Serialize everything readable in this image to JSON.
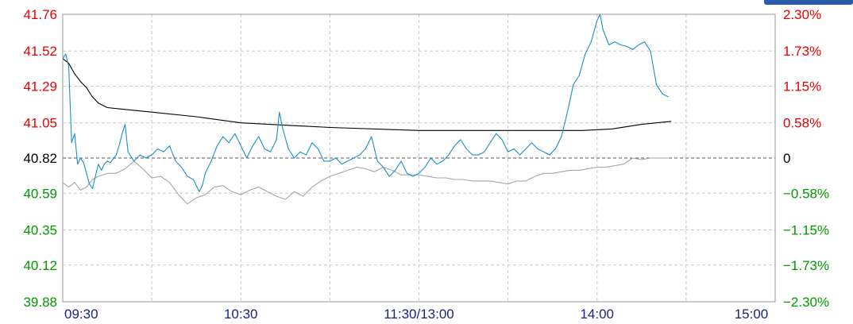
{
  "colors": {
    "up": "#e60000",
    "down": "#009900",
    "flat": "#000000",
    "axis_time": "#1a237e",
    "price_line": "#1a8fc8",
    "avg_line": "#000000",
    "index_line": "#a6a6a6",
    "grid": "#c8c8c8",
    "border": "#9a9a9a",
    "accent_button": "#2a5ba8"
  },
  "chart_data": {
    "type": "line",
    "prev_close": 40.82,
    "ylim": [
      39.88,
      41.76
    ],
    "y_ticks_left": [
      {
        "value": 41.76,
        "label": "41.76",
        "class": "up"
      },
      {
        "value": 41.52,
        "label": "41.52",
        "class": "up"
      },
      {
        "value": 41.29,
        "label": "41.29",
        "class": "up"
      },
      {
        "value": 41.05,
        "label": "41.05",
        "class": "up"
      },
      {
        "value": 40.82,
        "label": "40.82",
        "class": "flat"
      },
      {
        "value": 40.59,
        "label": "40.59",
        "class": "down"
      },
      {
        "value": 40.35,
        "label": "40.35",
        "class": "down"
      },
      {
        "value": 40.12,
        "label": "40.12",
        "class": "down"
      },
      {
        "value": 39.88,
        "label": "39.88",
        "class": "down"
      }
    ],
    "y_ticks_right": [
      {
        "value": 41.76,
        "label": "2.30%",
        "class": "up"
      },
      {
        "value": 41.52,
        "label": "1.73%",
        "class": "up"
      },
      {
        "value": 41.29,
        "label": "1.15%",
        "class": "up"
      },
      {
        "value": 41.05,
        "label": "0.58%",
        "class": "up"
      },
      {
        "value": 40.82,
        "label": "0",
        "class": "flat"
      },
      {
        "value": 40.59,
        "label": "−0.58%",
        "class": "down"
      },
      {
        "value": 40.35,
        "label": "−1.15%",
        "class": "down"
      },
      {
        "value": 40.12,
        "label": "−1.73%",
        "class": "down"
      },
      {
        "value": 39.88,
        "label": "−2.30%",
        "class": "down"
      }
    ],
    "x_range_minutes": [
      0,
      240
    ],
    "x_ticks": [
      {
        "minute": 0,
        "label": "09:30"
      },
      {
        "minute": 60,
        "label": "10:30"
      },
      {
        "minute": 120,
        "label": "11:30/13:00"
      },
      {
        "minute": 180,
        "label": "14:00"
      },
      {
        "minute": 240,
        "label": "15:00"
      }
    ],
    "x_grid_minutes": [
      30,
      60,
      90,
      120,
      150,
      180,
      210
    ],
    "series": [
      {
        "key": "price",
        "x": [
          0,
          1,
          2,
          3,
          4,
          5,
          6,
          7,
          8,
          9,
          10,
          11,
          12,
          13,
          14,
          15,
          16,
          18,
          19,
          20,
          21,
          22,
          24,
          26,
          28,
          30,
          32,
          34,
          36,
          38,
          40,
          42,
          44,
          46,
          47,
          48,
          50,
          52,
          54,
          56,
          58,
          60,
          62,
          64,
          66,
          68,
          70,
          72,
          73,
          74,
          76,
          78,
          80,
          82,
          84,
          86,
          88,
          90,
          92,
          94,
          96,
          98,
          100,
          102,
          104,
          106,
          108,
          110,
          112,
          114,
          116,
          118,
          120,
          122,
          124,
          126,
          128,
          130,
          132,
          134,
          136,
          138,
          140,
          142,
          144,
          146,
          148,
          150,
          152,
          154,
          156,
          158,
          160,
          162,
          164,
          166,
          168,
          170,
          172,
          174,
          176,
          178,
          180,
          181,
          182,
          184,
          186,
          188,
          190,
          192,
          194,
          196,
          198,
          200,
          202,
          204
        ],
        "values": [
          41.47,
          41.5,
          41.42,
          40.92,
          40.98,
          40.78,
          40.82,
          40.79,
          40.72,
          40.65,
          40.62,
          40.7,
          40.78,
          40.74,
          40.78,
          40.8,
          40.79,
          40.84,
          40.9,
          40.98,
          41.04,
          40.86,
          40.8,
          40.84,
          40.82,
          40.84,
          40.88,
          40.86,
          40.9,
          40.8,
          40.76,
          40.7,
          40.68,
          40.6,
          40.64,
          40.72,
          40.8,
          40.9,
          40.96,
          40.92,
          40.98,
          40.9,
          40.82,
          40.9,
          40.96,
          40.88,
          40.86,
          40.94,
          41.12,
          41.02,
          40.88,
          40.82,
          40.86,
          40.84,
          40.92,
          40.88,
          40.8,
          40.8,
          40.82,
          40.78,
          40.8,
          40.82,
          40.84,
          40.88,
          40.96,
          40.8,
          40.76,
          40.7,
          40.74,
          40.8,
          40.72,
          40.7,
          40.72,
          40.76,
          40.82,
          40.78,
          40.8,
          40.84,
          40.9,
          40.94,
          40.88,
          40.84,
          40.84,
          40.86,
          40.92,
          40.98,
          40.94,
          40.86,
          40.88,
          40.84,
          40.88,
          40.92,
          40.88,
          40.86,
          40.84,
          40.88,
          40.96,
          41.12,
          41.3,
          41.36,
          41.5,
          41.58,
          41.72,
          41.76,
          41.66,
          41.56,
          41.58,
          41.56,
          41.55,
          41.53,
          41.56,
          41.58,
          41.52,
          41.3,
          41.24,
          41.22
        ]
      },
      {
        "key": "avg",
        "x": [
          0,
          2,
          4,
          6,
          8,
          10,
          12,
          15,
          20,
          30,
          45,
          60,
          90,
          120,
          135,
          150,
          165,
          175,
          185,
          195,
          205
        ],
        "values": [
          41.47,
          41.44,
          41.37,
          41.32,
          41.28,
          41.22,
          41.18,
          41.15,
          41.14,
          41.12,
          41.09,
          41.05,
          41.02,
          41.0,
          41.0,
          41.0,
          41.0,
          41.0,
          41.01,
          41.04,
          41.06
        ]
      },
      {
        "key": "index",
        "x": [
          0,
          2,
          4,
          6,
          8,
          10,
          12,
          15,
          18,
          21,
          24,
          27,
          30,
          33,
          36,
          39,
          42,
          45,
          48,
          51,
          54,
          57,
          60,
          63,
          66,
          69,
          72,
          75,
          78,
          81,
          84,
          87,
          90,
          93,
          96,
          99,
          102,
          105,
          108,
          111,
          114,
          117,
          120,
          123,
          126,
          129,
          132,
          135,
          138,
          141,
          144,
          147,
          150,
          153,
          156,
          159,
          162,
          165,
          168,
          171,
          174,
          177,
          180,
          183,
          186,
          189,
          192,
          195,
          198,
          201,
          204
        ],
        "values": [
          40.66,
          40.63,
          40.66,
          40.61,
          40.63,
          40.68,
          40.7,
          40.72,
          40.72,
          40.75,
          40.8,
          40.75,
          40.69,
          40.7,
          40.66,
          40.58,
          40.52,
          40.56,
          40.58,
          40.63,
          40.64,
          40.6,
          40.58,
          40.61,
          40.63,
          40.6,
          40.57,
          40.55,
          40.6,
          40.57,
          40.63,
          40.67,
          40.7,
          40.72,
          40.74,
          40.76,
          40.75,
          40.73,
          40.76,
          40.74,
          40.71,
          40.71,
          40.71,
          40.7,
          40.69,
          40.69,
          40.68,
          40.68,
          40.67,
          40.67,
          40.67,
          40.66,
          40.65,
          40.67,
          40.67,
          40.7,
          40.72,
          40.72,
          40.73,
          40.74,
          40.74,
          40.75,
          40.76,
          40.76,
          40.77,
          40.78,
          40.82,
          40.81,
          40.82,
          40.82,
          40.82
        ]
      }
    ]
  }
}
